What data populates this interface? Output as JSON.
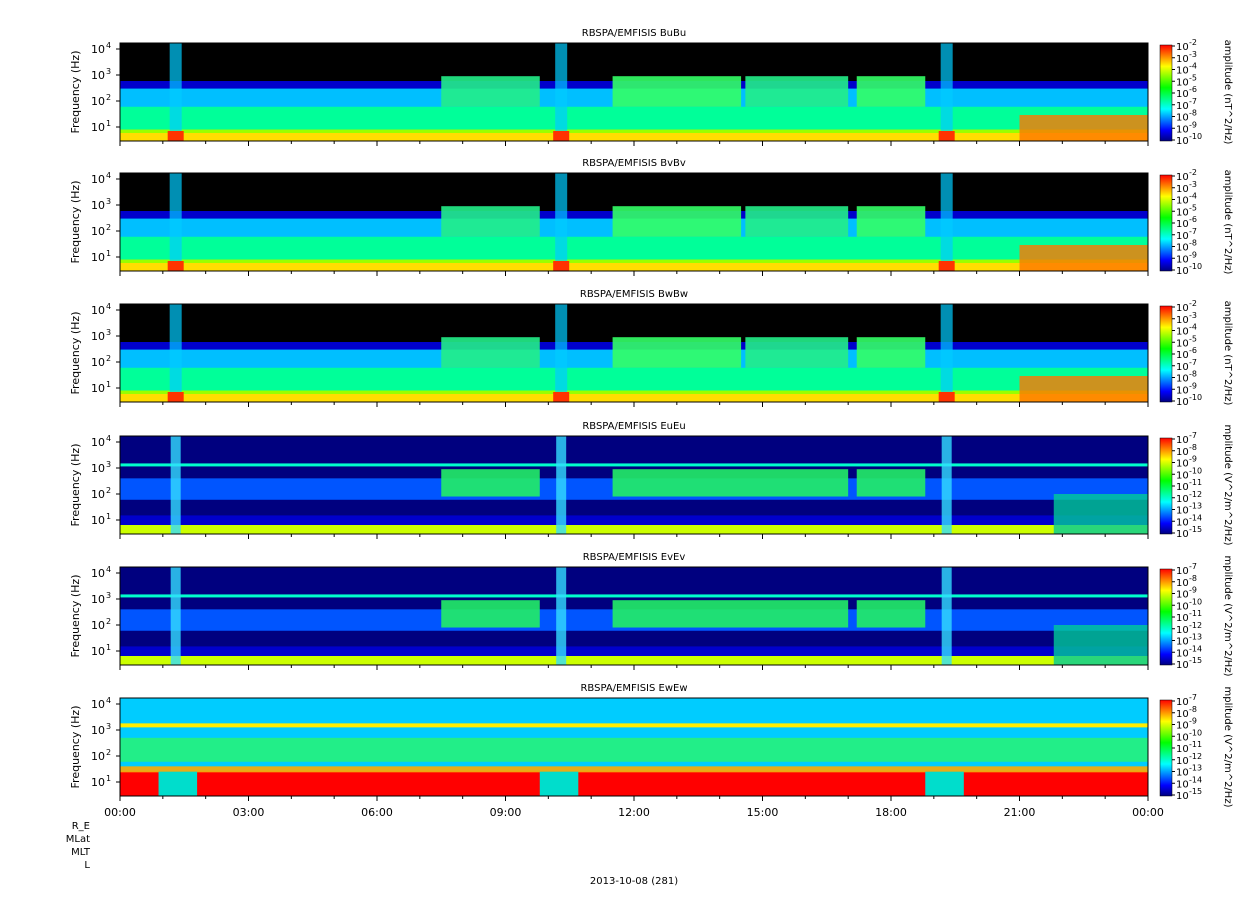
{
  "chart_data": {
    "type": "heatmap",
    "date_label": "2013-10-08 (281)",
    "time_range": [
      "00:00",
      "00:00"
    ],
    "x_ticks": [
      "00:00",
      "03:00",
      "06:00",
      "09:00",
      "12:00",
      "15:00",
      "18:00",
      "21:00",
      "00:00"
    ],
    "ephemeris_labels": [
      "R_E",
      "MLat",
      "MLT",
      "L"
    ],
    "ylabel": "Frequency (Hz)",
    "y_scale": "log",
    "y_ticks": [
      {
        "base": "10",
        "exp": "1"
      },
      {
        "base": "10",
        "exp": "2"
      },
      {
        "base": "10",
        "exp": "3"
      },
      {
        "base": "10",
        "exp": "4"
      }
    ],
    "panels": [
      {
        "title": "RBSPA/EMFISIS  BuBu",
        "zlabel": "amplitude (nT^2/Hz)",
        "z_ticks": [
          "-2",
          "-3",
          "-4",
          "-5",
          "-6",
          "-7",
          "-8",
          "-9",
          "-10"
        ],
        "kind": "B"
      },
      {
        "title": "RBSPA/EMFISIS  BvBv",
        "zlabel": "amplitude (nT^2/Hz)",
        "z_ticks": [
          "-2",
          "-3",
          "-4",
          "-5",
          "-6",
          "-7",
          "-8",
          "-9",
          "-10"
        ],
        "kind": "B"
      },
      {
        "title": "RBSPA/EMFISIS  BwBw",
        "zlabel": "amplitude (nT^2/Hz)",
        "z_ticks": [
          "-2",
          "-3",
          "-4",
          "-5",
          "-6",
          "-7",
          "-8",
          "-9",
          "-10"
        ],
        "kind": "B"
      },
      {
        "title": "RBSPA/EMFISIS  EuEu",
        "zlabel": "mplitude (V^2/m^2/Hz)",
        "z_ticks": [
          "-7",
          "-8",
          "-9",
          "-10",
          "-11",
          "-12",
          "-13",
          "-14",
          "-15"
        ],
        "kind": "E"
      },
      {
        "title": "RBSPA/EMFISIS  EvEv",
        "zlabel": "mplitude (V^2/m^2/Hz)",
        "z_ticks": [
          "-7",
          "-8",
          "-9",
          "-10",
          "-11",
          "-12",
          "-13",
          "-14",
          "-15"
        ],
        "kind": "E"
      },
      {
        "title": "RBSPA/EMFISIS  EwEw",
        "zlabel": "mplitude (V^2/m^2/Hz)",
        "z_ticks": [
          "-7",
          "-8",
          "-9",
          "-10",
          "-11",
          "-12",
          "-13",
          "-14",
          "-15"
        ],
        "kind": "Ew"
      }
    ],
    "colormap": [
      "#00007f",
      "#0000ff",
      "#007fff",
      "#00ffff",
      "#00ff7f",
      "#00ff00",
      "#7fff00",
      "#ffff00",
      "#ff7f00",
      "#ff0000"
    ]
  }
}
